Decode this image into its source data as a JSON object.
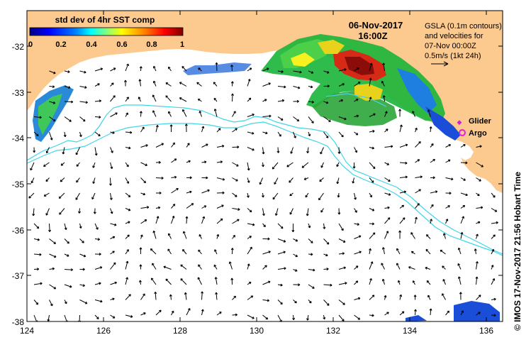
{
  "map": {
    "lon_ticks": [
      "124",
      "126",
      "128",
      "130",
      "132",
      "134",
      "136"
    ],
    "lat_ticks": [
      "-32",
      "-33",
      "-34",
      "-35",
      "-36",
      "-37",
      "-38"
    ],
    "land_color": "#fcc98f",
    "ocean_color": "#ffffff",
    "contour_color": "#3fd6e6",
    "arrow_color": "#000000"
  },
  "colorbar": {
    "title": "std dev of 4hr SST comp",
    "tick_labels": [
      "0",
      "0.2",
      "0.4",
      "0.6",
      "0.8",
      "1"
    ],
    "colors": [
      "#00007f",
      "#0000ff",
      "#0080ff",
      "#00ffff",
      "#80ff80",
      "#ffff00",
      "#ff8000",
      "#ff0000",
      "#7f0000"
    ]
  },
  "header": {
    "date": "06-Nov-2017",
    "time": "16:00Z"
  },
  "legend": {
    "line1": "GSLA (0.1m contours)",
    "line2": "and velocities for",
    "line3": "07-Nov 00:00Z",
    "line4": "0.5m/s (1kt 24h)",
    "glider_label": "Glider",
    "glider_color": "#d020d0",
    "argo_label": "Argo",
    "argo_color": "#e020e0"
  },
  "credit": "© IMOS 17-Nov-2017 21:56 Hobart Time"
}
